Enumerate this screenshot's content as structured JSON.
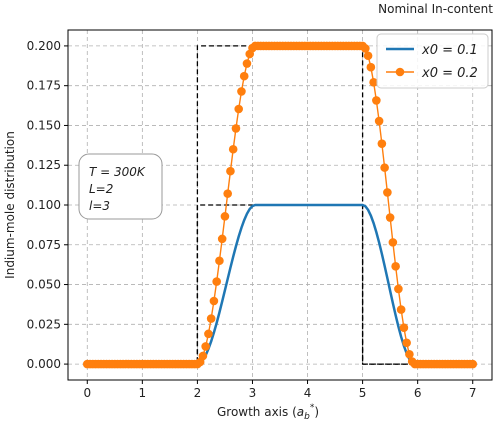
{
  "chart_data": {
    "type": "line",
    "title": "Nominal In-content",
    "xlabel": "Growth axis (a_b^*)",
    "xlabel_main": "Growth axis (",
    "xlabel_sym": "a",
    "xlabel_sub": "b",
    "xlabel_sup": "*",
    "xlabel_close": ")",
    "ylabel": "Indium-mole distribution",
    "xlim": [
      -0.35,
      7.35
    ],
    "ylim": [
      -0.01,
      0.21
    ],
    "x_ticks": [
      0,
      1,
      2,
      3,
      4,
      5,
      6,
      7
    ],
    "x_tick_labels": [
      "0",
      "1",
      "2",
      "3",
      "4",
      "5",
      "6",
      "7"
    ],
    "y_ticks": [
      0.0,
      0.025,
      0.05,
      0.075,
      0.1,
      0.125,
      0.15,
      0.175,
      0.2
    ],
    "y_tick_labels": [
      "0.000",
      "0.025",
      "0.050",
      "0.075",
      "0.100",
      "0.125",
      "0.150",
      "0.175",
      "0.200"
    ],
    "grid": true,
    "legend_position": "upper right",
    "series": [
      {
        "name": "x0 = 0.1",
        "legend_label": "x0 = 0.1",
        "color": "#1f77b4",
        "style": "solid",
        "profile": {
          "x0": 0.1,
          "well_start": 2,
          "well_end": 5,
          "x_min": 0,
          "x_max": 7,
          "samples": 141,
          "ramp_up_width": 1.05,
          "ramp_down_width": 0.95
        }
      },
      {
        "name": "x0 = 0.2",
        "legend_label": "x0 = 0.2",
        "color": "#ff7f0e",
        "style": "line-dot",
        "profile": {
          "x0": 0.2,
          "well_start": 2,
          "well_end": 5,
          "x_min": 0,
          "x_max": 7,
          "samples": 141,
          "ramp_up_width": 1.05,
          "ramp_down_width": 0.95
        }
      },
      {
        "name": "nominal x0 = 0.1",
        "color": "#000000",
        "style": "dashed",
        "points": [
          [
            0,
            0
          ],
          [
            2,
            0
          ],
          [
            2,
            0.1
          ],
          [
            5,
            0.1
          ],
          [
            5,
            0
          ],
          [
            7,
            0
          ]
        ]
      },
      {
        "name": "nominal x0 = 0.2",
        "color": "#000000",
        "style": "dashed",
        "points": [
          [
            0,
            0
          ],
          [
            2,
            0
          ],
          [
            2,
            0.2
          ],
          [
            5,
            0.2
          ],
          [
            5,
            0
          ],
          [
            7,
            0
          ]
        ]
      }
    ],
    "annotation": {
      "lines": [
        "T = 300K",
        "L=2",
        "l=3"
      ]
    }
  }
}
